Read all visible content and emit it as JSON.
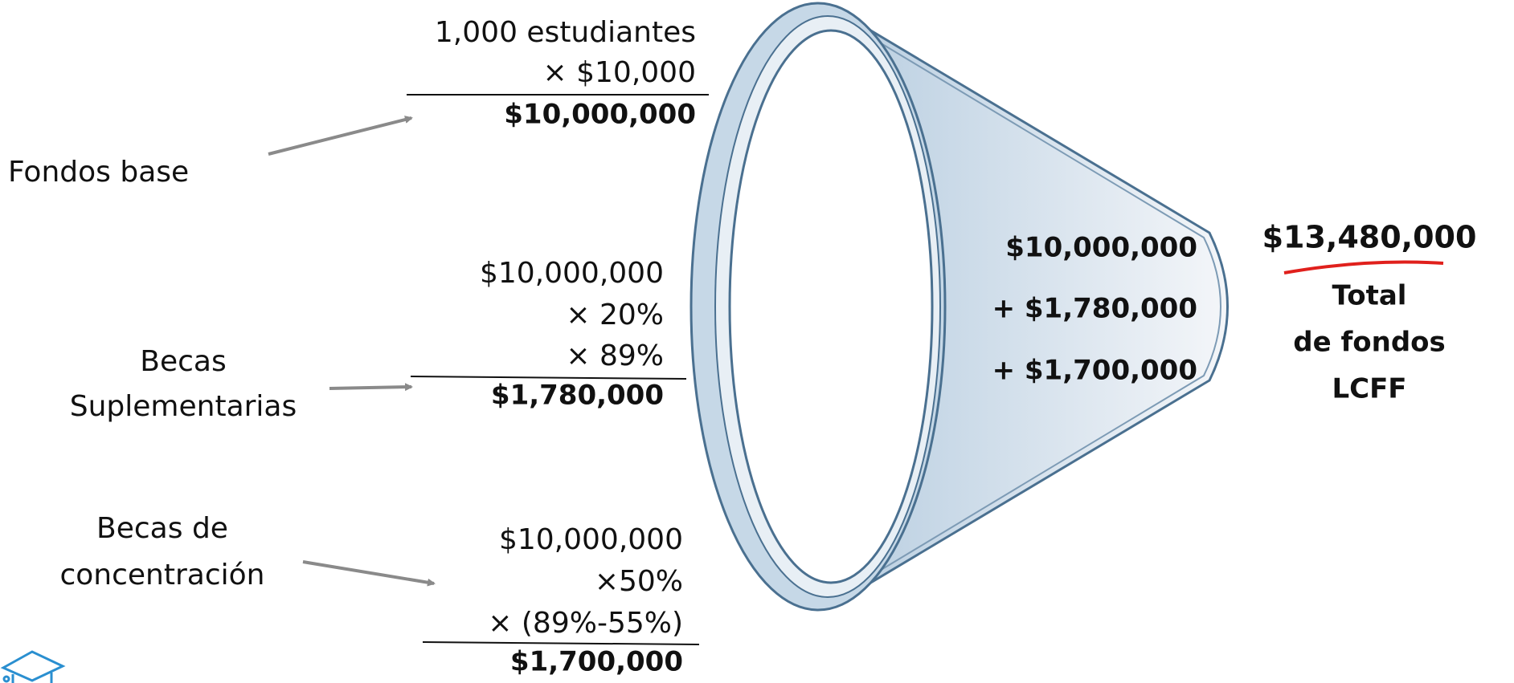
{
  "labels": {
    "base": "Fondos base",
    "supplemental": [
      "Becas",
      "Suplementarias"
    ],
    "concentration": [
      "Becas de",
      "concentración"
    ]
  },
  "calculations": [
    {
      "lines": [
        "1,000 estudiantes",
        "× $10,000"
      ],
      "result": "$10,000,000"
    },
    {
      "lines": [
        "$10,000,000",
        "× 20%",
        "× 89%"
      ],
      "result": "$1,780,000"
    },
    {
      "lines": [
        "$10,000,000",
        "×50%",
        "× (89%-55%)"
      ],
      "result": "$1,700,000"
    }
  ],
  "funnel": [
    "$10,000,000",
    "+ $1,780,000",
    "+ $1,700,000"
  ],
  "total": {
    "amount": "$13,480,000",
    "label": [
      "Total",
      "de fondos",
      "LCFF"
    ]
  }
}
